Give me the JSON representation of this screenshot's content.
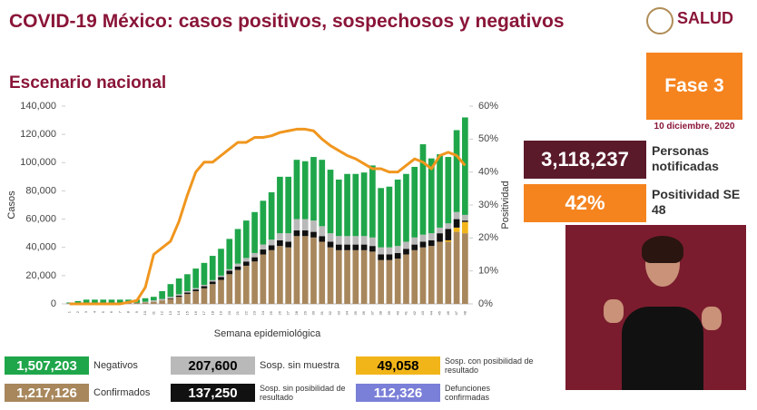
{
  "header": {
    "title": "COVID-19 México: casos positivos, sospechosos y negativos",
    "logo": "SALUD"
  },
  "section": "Escenario nacional",
  "phase": "Fase 3",
  "date": "10 diciembre, 2020",
  "kpis": [
    {
      "value": "3,118,237",
      "label": "Personas notificadas"
    },
    {
      "value": "42%",
      "label": "Positividad SE 48"
    }
  ],
  "chart_data": {
    "type": "stacked-bar-line",
    "x_label": "Semana epidemiológica",
    "y_label": "Casos",
    "y2_label": "Positividad",
    "categories": [
      "1",
      "2",
      "3",
      "4",
      "5",
      "6",
      "7",
      "8",
      "9",
      "10",
      "11",
      "12",
      "13",
      "14",
      "15",
      "16",
      "17",
      "18",
      "19",
      "20",
      "21",
      "22",
      "23",
      "24",
      "25",
      "26",
      "27",
      "28",
      "29",
      "30",
      "31",
      "32",
      "33",
      "34",
      "35",
      "36",
      "37",
      "38",
      "39",
      "40",
      "41",
      "42",
      "43",
      "44",
      "45",
      "46",
      "47",
      "48"
    ],
    "ylim": [
      0,
      140000
    ],
    "yticks": [
      0,
      {
        "value": 20000,
        "label": "20,000"
      },
      {
        "value": 40000,
        "label": "40,000"
      },
      {
        "value": 60000,
        "label": "60,000"
      },
      {
        "value": 80000,
        "label": "80,000"
      },
      {
        "value": 100000,
        "label": "100,000"
      },
      {
        "value": 120000,
        "label": "120,000"
      },
      {
        "value": 140000,
        "label": "140,000"
      }
    ],
    "y2lim": [
      0,
      60
    ],
    "y2ticks": [
      {
        "value": 0,
        "label": "0%"
      },
      {
        "value": 10,
        "label": "10%"
      },
      {
        "value": 20,
        "label": "20%"
      },
      {
        "value": 30,
        "label": "30%"
      },
      {
        "value": 40,
        "label": "40%"
      },
      {
        "value": 50,
        "label": "50%"
      },
      {
        "value": 60,
        "label": "60%"
      }
    ],
    "series": [
      {
        "name": "Confirmados",
        "color": "#a8875d",
        "text_color": "#ffffff",
        "total": "1,217,126",
        "values": [
          500,
          700,
          900,
          900,
          900,
          800,
          800,
          800,
          800,
          1000,
          1500,
          2500,
          3500,
          5000,
          7000,
          9000,
          11000,
          14000,
          17000,
          21000,
          24000,
          27000,
          30000,
          35000,
          38000,
          41000,
          40000,
          48000,
          48000,
          47000,
          44000,
          40000,
          38000,
          38000,
          38000,
          38000,
          37000,
          31000,
          31000,
          32000,
          35000,
          38000,
          40000,
          41000,
          44000,
          44000,
          51000,
          50000
        ]
      },
      {
        "name": "Sosp. con posibilidad de resultado",
        "color": "#f2b519",
        "text_color": "#000000",
        "total": "49,058",
        "values": [
          0,
          0,
          0,
          0,
          0,
          0,
          0,
          0,
          0,
          0,
          0,
          0,
          0,
          0,
          0,
          0,
          0,
          0,
          0,
          0,
          0,
          0,
          0,
          0,
          0,
          0,
          0,
          0,
          0,
          0,
          0,
          0,
          0,
          0,
          0,
          0,
          0,
          0,
          0,
          0,
          0,
          0,
          0,
          0,
          0,
          1000,
          3000,
          8000
        ]
      },
      {
        "name": "Sosp. sin posibilidad de resultado",
        "color": "#111111",
        "text_color": "#ffffff",
        "total": "137,250",
        "values": [
          0,
          0,
          0,
          0,
          0,
          0,
          0,
          0,
          0,
          0,
          0,
          0,
          500,
          800,
          1000,
          1200,
          1500,
          1800,
          2000,
          2500,
          2500,
          3000,
          3000,
          3500,
          3500,
          4000,
          4000,
          4000,
          4000,
          4000,
          4000,
          4000,
          4000,
          4000,
          4000,
          4000,
          4000,
          4000,
          4000,
          4000,
          4000,
          4000,
          4000,
          4000,
          6000,
          8000,
          6000,
          1000
        ]
      },
      {
        "name": "Sosp. sin muestra",
        "color": "#b9b9b9",
        "text_color": "#000000",
        "total": "207,600",
        "values": [
          0,
          0,
          0,
          0,
          0,
          0,
          0,
          0,
          0,
          500,
          1000,
          1000,
          1000,
          1000,
          1000,
          1000,
          1000,
          1000,
          1000,
          1000,
          2000,
          2500,
          3000,
          3500,
          4000,
          5000,
          6000,
          8000,
          8000,
          8000,
          7000,
          6000,
          6000,
          6000,
          6000,
          6000,
          6000,
          5000,
          5000,
          5000,
          5000,
          5000,
          5000,
          5000,
          4000,
          4000,
          5000,
          4000
        ]
      },
      {
        "name": "Negativos",
        "color": "#1fa64a",
        "text_color": "#ffffff",
        "total": "1,507,203",
        "values": [
          500,
          1300,
          2100,
          2100,
          2100,
          2200,
          2200,
          2200,
          2200,
          2500,
          2500,
          5500,
          9000,
          11200,
          12000,
          13800,
          15500,
          17200,
          19000,
          21500,
          24500,
          26500,
          29000,
          31000,
          33500,
          40000,
          40000,
          42000,
          41000,
          45000,
          47000,
          45000,
          40000,
          44000,
          44000,
          45000,
          51000,
          42000,
          43000,
          47000,
          48000,
          50000,
          64000,
          53000,
          52000,
          47000,
          58000,
          69000
        ]
      }
    ],
    "line": {
      "color": "#f0961e",
      "axis": "y2",
      "values": [
        0,
        0,
        0,
        0,
        0,
        0,
        0,
        0.5,
        1,
        5,
        15,
        17,
        19,
        25,
        33,
        40,
        43,
        43,
        45,
        47,
        49,
        49,
        50.5,
        50.5,
        51,
        52,
        52.5,
        53,
        53,
        52.5,
        50,
        48,
        46.5,
        45,
        44,
        42.5,
        41,
        41,
        40,
        40,
        42,
        44,
        43,
        41,
        45,
        46,
        45,
        42
      ]
    },
    "deaths": {
      "label": "Defunciones confirmadas",
      "total": "112,326",
      "color": "#7a7fd8"
    }
  }
}
